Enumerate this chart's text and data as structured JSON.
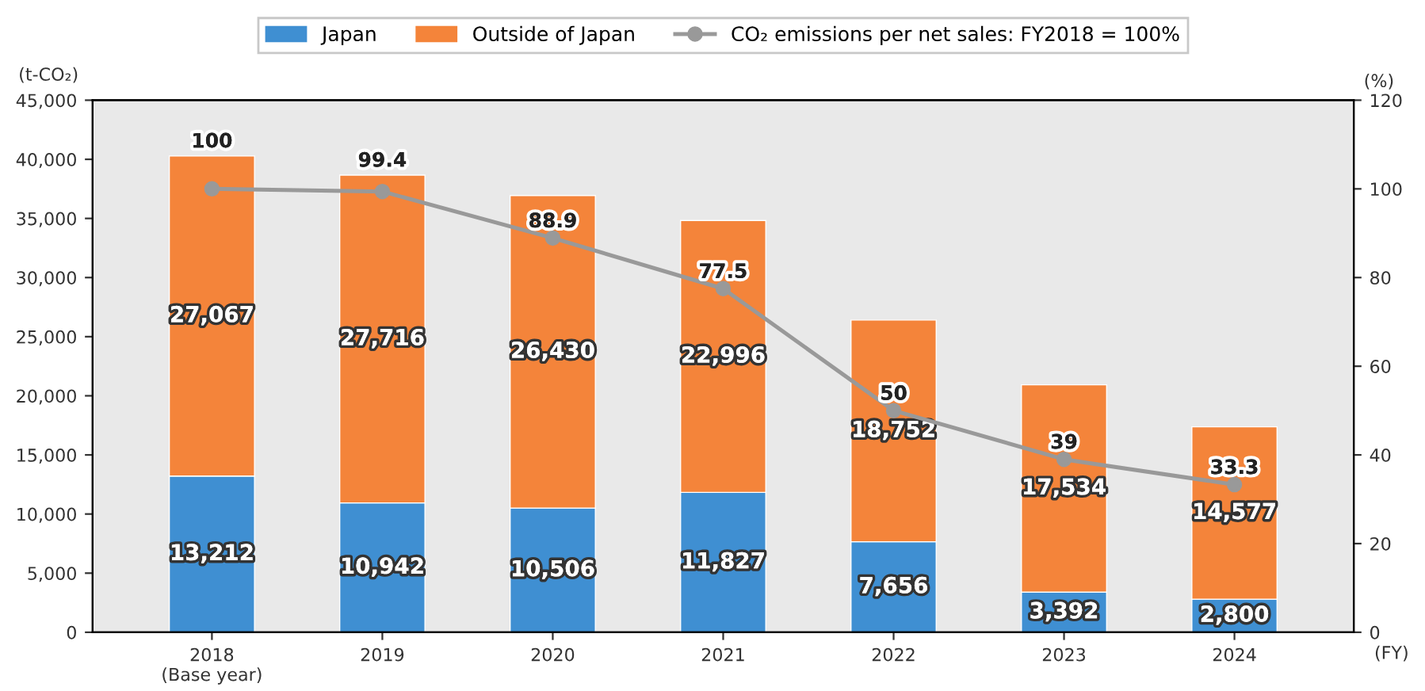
{
  "chart_data": {
    "type": "bar",
    "stacked": true,
    "categories": [
      "2018\n(Base year)",
      "2019",
      "2020",
      "2021",
      "2022",
      "2023",
      "2024"
    ],
    "series": [
      {
        "name": "Japan",
        "color": "#3f8fd2",
        "values": [
          13212,
          10942,
          10506,
          11827,
          7656,
          3392,
          2800
        ],
        "value_labels": [
          "13,212",
          "10,942",
          "10,506",
          "11,827",
          "7,656",
          "3,392",
          "2,800"
        ]
      },
      {
        "name": "Outside of Japan",
        "color": "#f4843a",
        "values": [
          27067,
          27716,
          26430,
          22996,
          18752,
          17534,
          14577
        ],
        "value_labels": [
          "27,067",
          "27,716",
          "26,430",
          "22,996",
          "18,752",
          "17,534",
          "14,577"
        ]
      },
      {
        "name": "CO₂ emissions per net sales: FY2018 = 100%",
        "type": "line",
        "axis": "y2",
        "color": "#999999",
        "marker": "circle",
        "values": [
          100,
          99.4,
          88.9,
          77.5,
          50,
          39,
          33.3
        ]
      }
    ],
    "ylabel": "(t-CO₂)",
    "y2label": "(%)",
    "xlabel": "(FY)",
    "ylim": [
      0,
      45000
    ],
    "yticks": [
      {
        "value": 0,
        "label": "0"
      },
      {
        "value": 5000,
        "label": "5,000"
      },
      {
        "value": 10000,
        "label": "10,000"
      },
      {
        "value": 15000,
        "label": "15,000"
      },
      {
        "value": 20000,
        "label": "20,000"
      },
      {
        "value": 25000,
        "label": "25,000"
      },
      {
        "value": 30000,
        "label": "30,000"
      },
      {
        "value": 35000,
        "label": "35,000"
      },
      {
        "value": 40000,
        "label": "40,000"
      },
      {
        "value": 45000,
        "label": "45,000"
      }
    ],
    "y2lim": [
      0,
      120
    ],
    "y2ticks": [
      0,
      20,
      40,
      60,
      80,
      100,
      120
    ],
    "data_labels": true,
    "legend": "top",
    "grid": false
  }
}
